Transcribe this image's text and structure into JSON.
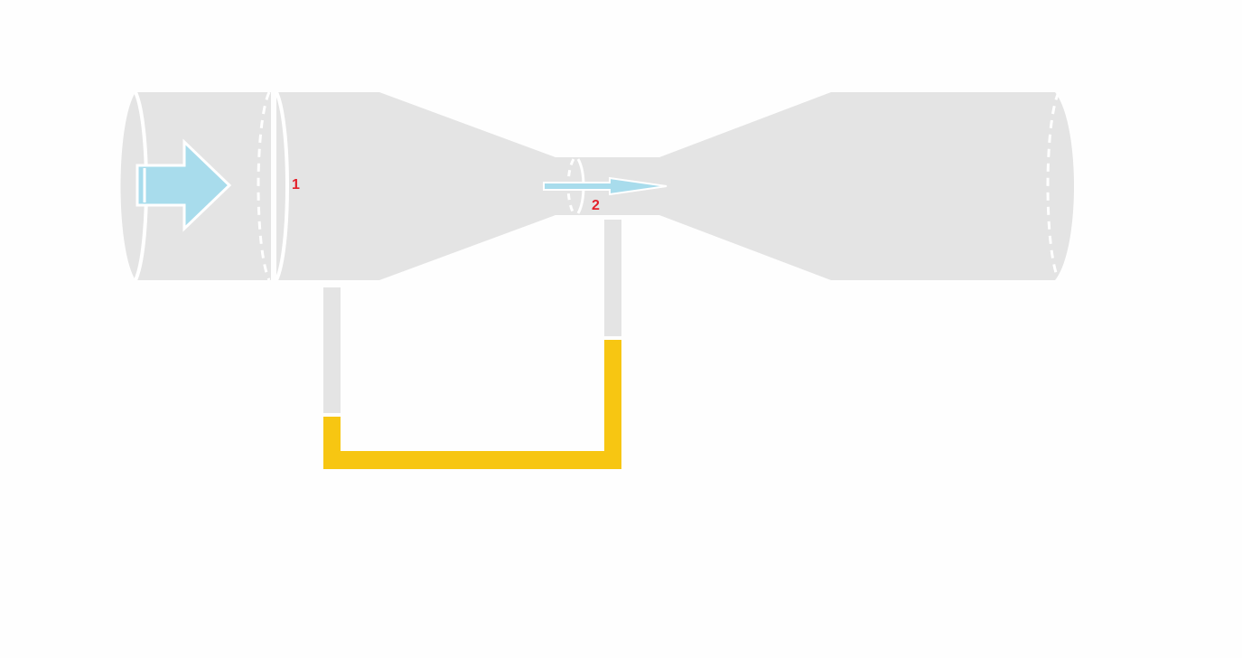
{
  "diagram": {
    "labels": {
      "section_1": "1",
      "section_2": "2"
    },
    "colors": {
      "background": "#fefefe",
      "pipe": "#e4e4e4",
      "edge": "#ffffff",
      "flow_arrow": "#a8dcec",
      "manometer_fluid": "#f7c612",
      "label": "#e3202a"
    },
    "icons": {
      "inlet_flow": "arrow-right-icon",
      "throat_flow": "arrow-right-icon"
    }
  }
}
